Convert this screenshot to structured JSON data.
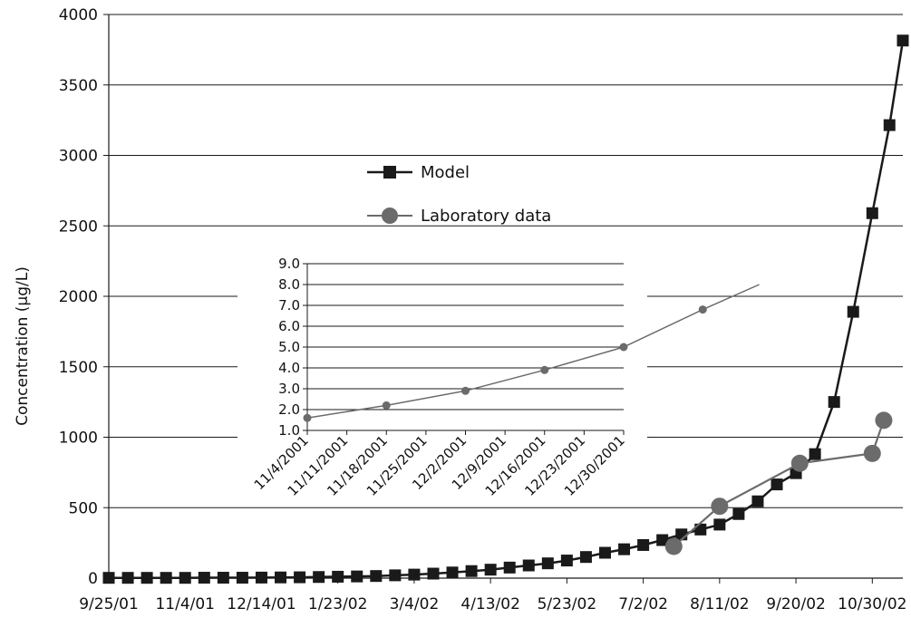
{
  "chart_data": [
    {
      "type": "line",
      "title": "",
      "xlabel": "",
      "ylabel": "Concentration (µg/L)",
      "ylim": [
        0,
        4000
      ],
      "yticks": [
        "0",
        "500",
        "1000",
        "1500",
        "2000",
        "2500",
        "3000",
        "3500",
        "4000"
      ],
      "xlim": [
        "2001-09-25",
        "2002-11-15"
      ],
      "xticks": [
        "9/25/01",
        "11/4/01",
        "12/14/01",
        "1/23/02",
        "3/4/02",
        "4/13/02",
        "5/23/02",
        "7/2/02",
        "8/11/02",
        "9/20/02",
        "10/30/02"
      ],
      "xtick_dates": [
        "2001-09-25",
        "2001-11-04",
        "2001-12-14",
        "2002-01-23",
        "2002-03-04",
        "2002-04-13",
        "2002-05-23",
        "2002-07-02",
        "2002-08-11",
        "2002-09-20",
        "2002-10-30"
      ],
      "grid": "horizontal",
      "legend_position": "upper-middle",
      "series": [
        {
          "name": "Model",
          "marker": "square",
          "color": "#1a1a1a",
          "points": [
            [
              "2001-09-25",
              2
            ],
            [
              "2001-10-05",
              2
            ],
            [
              "2001-10-15",
              2
            ],
            [
              "2001-10-25",
              2
            ],
            [
              "2001-11-04",
              2
            ],
            [
              "2001-11-14",
              3
            ],
            [
              "2001-11-24",
              3
            ],
            [
              "2001-12-04",
              3
            ],
            [
              "2001-12-14",
              4
            ],
            [
              "2001-12-24",
              5
            ],
            [
              "2002-01-03",
              6
            ],
            [
              "2002-01-13",
              8
            ],
            [
              "2002-01-23",
              10
            ],
            [
              "2002-02-02",
              12
            ],
            [
              "2002-02-12",
              15
            ],
            [
              "2002-02-22",
              20
            ],
            [
              "2002-03-04",
              25
            ],
            [
              "2002-03-14",
              32
            ],
            [
              "2002-03-24",
              40
            ],
            [
              "2002-04-03",
              50
            ],
            [
              "2002-04-13",
              60
            ],
            [
              "2002-04-23",
              75
            ],
            [
              "2002-05-03",
              90
            ],
            [
              "2002-05-13",
              105
            ],
            [
              "2002-05-23",
              125
            ],
            [
              "2002-06-02",
              150
            ],
            [
              "2002-06-12",
              180
            ],
            [
              "2002-06-22",
              205
            ],
            [
              "2002-07-02",
              235
            ],
            [
              "2002-07-12",
              270
            ],
            [
              "2002-07-22",
              310
            ],
            [
              "2002-08-01",
              345
            ],
            [
              "2002-08-11",
              380
            ],
            [
              "2002-08-21",
              455
            ],
            [
              "2002-08-31",
              545
            ],
            [
              "2002-09-10",
              665
            ],
            [
              "2002-09-20",
              745
            ],
            [
              "2002-09-30",
              880
            ],
            [
              "2002-10-10",
              1250
            ],
            [
              "2002-10-20",
              1890
            ],
            [
              "2002-10-30",
              2590
            ],
            [
              "2002-11-08",
              3215
            ],
            [
              "2002-11-15",
              3815
            ]
          ]
        },
        {
          "name": "Laboratory data",
          "marker": "circle",
          "color": "#6b6b6b",
          "points": [
            [
              "2002-07-18",
              225
            ],
            [
              "2002-08-11",
              510
            ],
            [
              "2002-09-22",
              815
            ],
            [
              "2002-10-30",
              885
            ],
            [
              "2002-11-05",
              1120
            ]
          ]
        }
      ]
    },
    {
      "type": "line",
      "title": "",
      "xlabel": "",
      "ylabel": "",
      "ylim": [
        1.0,
        9.0
      ],
      "yticks": [
        "1.0",
        "2.0",
        "3.0",
        "4.0",
        "5.0",
        "6.0",
        "7.0",
        "8.0",
        "9.0"
      ],
      "xticks": [
        "11/4/2001",
        "11/11/2001",
        "11/18/2001",
        "11/25/2001",
        "12/2/2001",
        "12/9/2001",
        "12/16/2001",
        "12/23/2001",
        "12/30/2001"
      ],
      "grid": "horizontal",
      "series": [
        {
          "marker": "circle",
          "color": "#6b6b6b",
          "points": [
            [
              "11/4/2001",
              1.6
            ],
            [
              "11/18/2001",
              2.2
            ],
            [
              "12/2/2001",
              2.9
            ],
            [
              "12/16/2001",
              3.9
            ],
            [
              "12/30/2001",
              5.0
            ],
            [
              "1/13/2002",
              6.8
            ],
            [
              "1/23/2002",
              8.0
            ]
          ]
        }
      ]
    }
  ],
  "legend": {
    "model_label": "Model",
    "lab_label": "Laboratory data"
  },
  "colors": {
    "model": "#1a1a1a",
    "lab": "#6b6b6b",
    "grid": "#1a1a1a"
  }
}
